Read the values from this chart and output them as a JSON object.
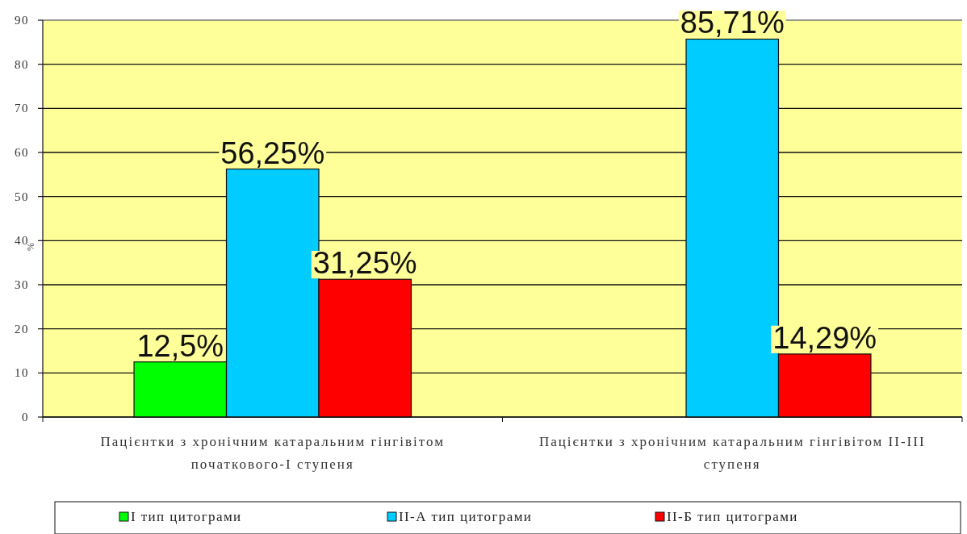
{
  "chart_data": {
    "type": "bar",
    "ylabel": "%",
    "categories": [
      "Пацієнтки з хронічним катаральним гінгівітом початкового-I ступеня",
      "Пацієнтки з хронічним катаральним гінгівітом II-III ступеня"
    ],
    "series": [
      {
        "name": "I тип цитограми",
        "color": "#00ff00",
        "values": [
          12.5,
          null
        ],
        "value_labels": [
          "12,5%",
          null
        ]
      },
      {
        "name": "II-А тип цитограми",
        "color": "#00ccff",
        "values": [
          56.25,
          85.71
        ],
        "value_labels": [
          "56,25%",
          "85,71%"
        ]
      },
      {
        "name": "II-Б тип цитограми",
        "color": "#ff0000",
        "values": [
          31.25,
          14.29
        ],
        "value_labels": [
          "31,25%",
          "14,29%"
        ]
      }
    ],
    "ylim": [
      0,
      90
    ],
    "yticks": [
      0,
      10,
      20,
      30,
      40,
      50,
      60,
      70,
      80,
      90
    ],
    "grid": "y",
    "legend": "bottom"
  }
}
